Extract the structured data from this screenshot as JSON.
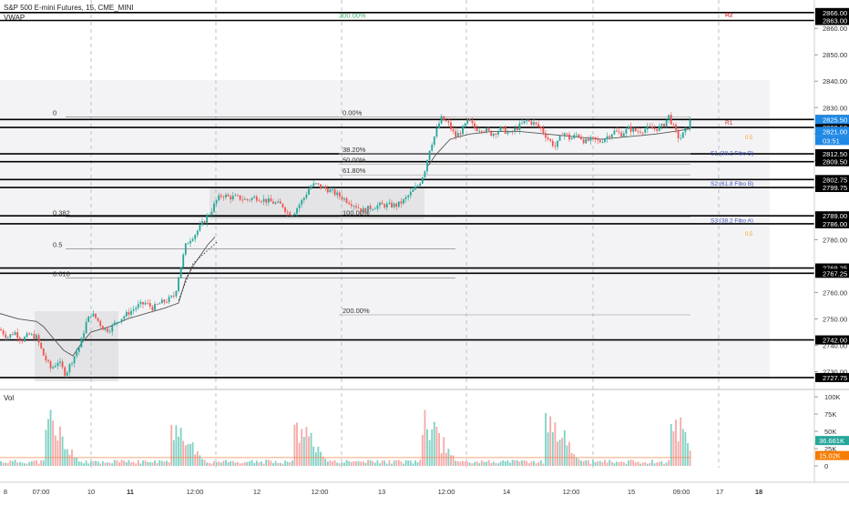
{
  "header": {
    "symbol": "S&P 500 E-mini Futures, 15, CME_MINI",
    "indicator": "VWAP"
  },
  "volume_pane": {
    "title": "Vol"
  },
  "colors": {
    "up": "#26a69a",
    "down": "#ef5350",
    "wick": "#333333",
    "hline": "#000000",
    "fib": "#8a8a8a",
    "vwap": "#555555",
    "pivot_red": "#d32f2f",
    "pivot_blue": "#3f51b5",
    "pivot_orange": "#f5a623",
    "tag_green": "#26a69a",
    "tag_orange": "#f57c00",
    "tag_blue": "#1e88e5"
  },
  "chart_data": {
    "type": "candlestick",
    "price_axis": {
      "ticks": [
        "2860.00",
        "2850.00",
        "2840.00",
        "2830.00",
        "2820.00",
        "2810.00",
        "2800.00",
        "2790.00",
        "2780.00",
        "2770.00",
        "2760.00",
        "2750.00",
        "2740.00",
        "2730.00"
      ],
      "range": [
        2726,
        2868
      ]
    },
    "volume_axis": {
      "ticks": [
        "100K",
        "75K",
        "50K",
        "25K",
        "0"
      ],
      "range": [
        0,
        108000
      ]
    },
    "time_axis": [
      "8",
      "07:00",
      "10",
      "11",
      "12:00",
      "12",
      "12:00",
      "13",
      "12:00",
      "14",
      "12:00",
      "15",
      "09:00",
      "17",
      "18"
    ],
    "horizontal_levels": [
      {
        "price": "2866.00"
      },
      {
        "price": "2863.00"
      },
      {
        "price": "2825.50"
      },
      {
        "price": "2822.50"
      },
      {
        "price": "2812.50"
      },
      {
        "price": "2809.50"
      },
      {
        "price": "2802.75"
      },
      {
        "price": "2799.75"
      },
      {
        "price": "2789.00"
      },
      {
        "price": "2786.00"
      },
      {
        "price": "2769.25"
      },
      {
        "price": "2767.25"
      },
      {
        "price": "2742.00"
      },
      {
        "price": "2727.75"
      }
    ],
    "price_tags": [
      {
        "text": "2825.50",
        "price": 2825.5
      },
      {
        "text": "2821.00",
        "price": 2821.0
      }
    ],
    "countdown": "03:51",
    "volume_tags": [
      {
        "text": "36.661K",
        "value": 36661
      },
      {
        "text": "15.02K",
        "value": 15020
      }
    ],
    "fib_left": [
      {
        "label": "0",
        "price": 2826.5
      },
      {
        "label": "0.382",
        "price": 2788.5
      },
      {
        "label": "0.5",
        "price": 2776.5
      },
      {
        "label": "0.618",
        "price": 2765.5
      }
    ],
    "fib_mid": [
      {
        "label": "0.00%",
        "price": 2826.5
      },
      {
        "label": "38.20%",
        "price": 2812.5
      },
      {
        "label": "50.00%",
        "price": 2808.5
      },
      {
        "label": "61.80%",
        "price": 2804.5
      },
      {
        "label": "100.00%",
        "price": 2788.5
      },
      {
        "label": "200.00%",
        "price": 2751.5
      }
    ],
    "fib_top_label": {
      "label": "300.00%",
      "price": 2865.0
    },
    "pivots": [
      {
        "label": "R2",
        "price": 2865.5,
        "color": "red"
      },
      {
        "label": "R1",
        "price": 2824.5,
        "color": "red"
      },
      {
        "label": "S1 (38.2 Fibo B)",
        "price": 2813.0,
        "color": "blue"
      },
      {
        "label": "S2 (61.8 Fibo B)",
        "price": 2801.5,
        "color": "blue"
      },
      {
        "label": "S3 (38.2 Fibo A)",
        "price": 2787.5,
        "color": "blue"
      }
    ],
    "pivot_small_tags": [
      {
        "label": "0.5",
        "price": 2819.0
      },
      {
        "label": "0.5",
        "price": 2782.5
      }
    ],
    "price_path": [
      [
        0,
        2746
      ],
      [
        8,
        2743
      ],
      [
        16,
        2745
      ],
      [
        24,
        2742
      ],
      [
        32,
        2744
      ],
      [
        40,
        2743
      ],
      [
        48,
        2736
      ],
      [
        56,
        2731
      ],
      [
        64,
        2734
      ],
      [
        72,
        2729
      ],
      [
        80,
        2735
      ],
      [
        88,
        2740
      ],
      [
        94,
        2748
      ],
      [
        100,
        2752
      ],
      [
        106,
        2750
      ],
      [
        114,
        2746
      ],
      [
        120,
        2746
      ],
      [
        128,
        2749
      ],
      [
        136,
        2751
      ],
      [
        144,
        2753
      ],
      [
        152,
        2755
      ],
      [
        160,
        2756
      ],
      [
        168,
        2754
      ],
      [
        176,
        2756
      ],
      [
        184,
        2757
      ],
      [
        192,
        2759
      ],
      [
        196,
        2766
      ],
      [
        200,
        2772
      ],
      [
        204,
        2778
      ],
      [
        208,
        2780
      ],
      [
        214,
        2782
      ],
      [
        220,
        2785
      ],
      [
        226,
        2788
      ],
      [
        232,
        2791
      ],
      [
        238,
        2795
      ],
      [
        244,
        2797
      ],
      [
        252,
        2796
      ],
      [
        260,
        2796
      ],
      [
        270,
        2795
      ],
      [
        280,
        2796
      ],
      [
        290,
        2795
      ],
      [
        300,
        2794
      ],
      [
        310,
        2793
      ],
      [
        316,
        2790
      ],
      [
        322,
        2790
      ],
      [
        328,
        2793
      ],
      [
        334,
        2796
      ],
      [
        340,
        2800
      ],
      [
        346,
        2801
      ],
      [
        352,
        2800
      ],
      [
        360,
        2799
      ],
      [
        370,
        2797
      ],
      [
        380,
        2795
      ],
      [
        390,
        2793
      ],
      [
        398,
        2791
      ],
      [
        406,
        2792
      ],
      [
        416,
        2793
      ],
      [
        426,
        2793
      ],
      [
        436,
        2793
      ],
      [
        444,
        2795
      ],
      [
        452,
        2798
      ],
      [
        460,
        2801
      ],
      [
        466,
        2806
      ],
      [
        472,
        2815
      ],
      [
        478,
        2820
      ],
      [
        484,
        2826
      ],
      [
        492,
        2824
      ],
      [
        500,
        2819
      ],
      [
        506,
        2821
      ],
      [
        514,
        2825
      ],
      [
        522,
        2822
      ],
      [
        530,
        2822
      ],
      [
        540,
        2820
      ],
      [
        550,
        2822
      ],
      [
        560,
        2820
      ],
      [
        570,
        2823
      ],
      [
        578,
        2825
      ],
      [
        586,
        2824
      ],
      [
        594,
        2822
      ],
      [
        602,
        2818
      ],
      [
        610,
        2815
      ],
      [
        618,
        2821
      ],
      [
        626,
        2818
      ],
      [
        634,
        2820
      ],
      [
        642,
        2817
      ],
      [
        650,
        2818
      ],
      [
        658,
        2817
      ],
      [
        666,
        2819
      ],
      [
        674,
        2821
      ],
      [
        682,
        2820
      ],
      [
        690,
        2822
      ],
      [
        700,
        2821
      ],
      [
        710,
        2822
      ],
      [
        720,
        2822
      ],
      [
        728,
        2823
      ],
      [
        734,
        2827
      ],
      [
        740,
        2822
      ],
      [
        746,
        2818
      ],
      [
        752,
        2821
      ],
      [
        758,
        2825
      ]
    ],
    "vwap_path": [
      [
        0,
        2752
      ],
      [
        20,
        2750
      ],
      [
        40,
        2749
      ],
      [
        48,
        2747
      ],
      [
        60,
        2742
      ],
      [
        70,
        2738
      ],
      [
        80,
        2736
      ],
      [
        90,
        2741
      ],
      [
        100,
        2745
      ],
      [
        120,
        2747
      ],
      [
        140,
        2750
      ],
      [
        160,
        2752
      ],
      [
        180,
        2754
      ],
      [
        196,
        2756
      ],
      [
        204,
        2765
      ],
      [
        212,
        2770
      ],
      [
        220,
        2774
      ],
      [
        228,
        2778
      ],
      [
        236,
        2781
      ]
    ],
    "vwap_path_2": [
      [
        470,
        2808
      ],
      [
        478,
        2812
      ],
      [
        486,
        2815
      ],
      [
        494,
        2818
      ],
      [
        504,
        2819
      ],
      [
        516,
        2820
      ],
      [
        540,
        2821
      ],
      [
        570,
        2821
      ],
      [
        600,
        2820
      ],
      [
        630,
        2819
      ],
      [
        660,
        2818
      ],
      [
        690,
        2819
      ],
      [
        720,
        2820
      ],
      [
        740,
        2821
      ],
      [
        758,
        2822
      ]
    ],
    "volume_profile": [
      {
        "start": 50,
        "end": 88
      },
      {
        "start": 186,
        "end": 228
      },
      {
        "start": 322,
        "end": 372
      },
      {
        "start": 462,
        "end": 512
      },
      {
        "start": 598,
        "end": 648
      },
      {
        "start": 736,
        "end": 760
      }
    ],
    "volume_base": 12000
  }
}
